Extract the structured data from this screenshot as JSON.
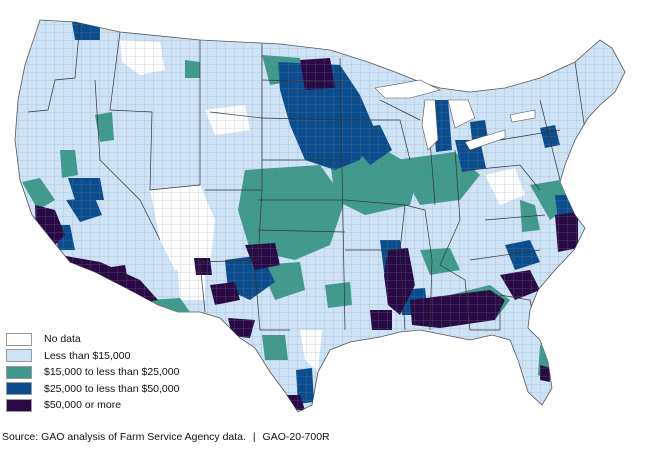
{
  "legend": {
    "items": [
      {
        "label": "No data",
        "color": "#ffffff"
      },
      {
        "label": "Less than $15,000",
        "color": "#cfe3f7"
      },
      {
        "label": "$15,000 to less than $25,000",
        "color": "#3f9a8c"
      },
      {
        "label": "$25,000 to less than $50,000",
        "color": "#0b4d8c"
      },
      {
        "label": "$50,000 or more",
        "color": "#2a0a45"
      }
    ]
  },
  "footer": {
    "source": "Source: GAO analysis of Farm Service Agency data.",
    "separator": "|",
    "report_id": "GAO-20-700R"
  }
}
